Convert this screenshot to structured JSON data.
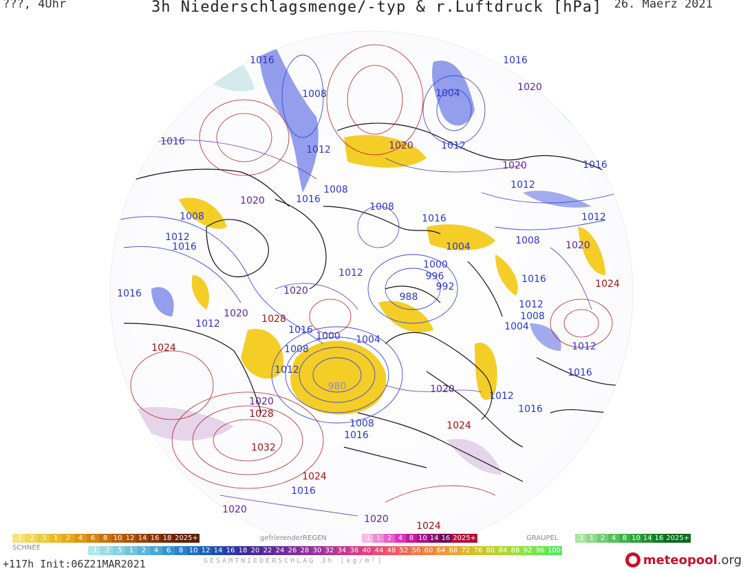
{
  "header": {
    "left": "???, 4Uhr",
    "title": "3h Niederschlagsmenge/-typ & r.Luftdruck [hPa]",
    "date": "26. Maerz 2021"
  },
  "pressure_labels": [
    {
      "t": "1016",
      "c": "lo"
    },
    {
      "t": "1008",
      "c": "lo"
    },
    {
      "t": "1012",
      "c": "lo"
    },
    {
      "t": "1020",
      "c": "mid"
    },
    {
      "t": "1004",
      "c": "lo"
    },
    {
      "t": "1016",
      "c": "lo"
    },
    {
      "t": "1020",
      "c": "mid"
    },
    {
      "t": "1012",
      "c": "lo"
    },
    {
      "t": "1016",
      "c": "lo"
    },
    {
      "t": "1020",
      "c": "mid"
    },
    {
      "t": "1012",
      "c": "lo"
    },
    {
      "t": "1008",
      "c": "lo"
    },
    {
      "t": "1016",
      "c": "lo"
    },
    {
      "t": "1020",
      "c": "mid"
    },
    {
      "t": "1016",
      "c": "lo"
    },
    {
      "t": "1012",
      "c": "lo"
    },
    {
      "t": "1008",
      "c": "lo"
    },
    {
      "t": "1012",
      "c": "lo"
    },
    {
      "t": "1016",
      "c": "lo"
    },
    {
      "t": "1016",
      "c": "lo"
    },
    {
      "t": "1008",
      "c": "lo"
    },
    {
      "t": "1004",
      "c": "lo"
    },
    {
      "t": "1008",
      "c": "lo"
    },
    {
      "t": "1020",
      "c": "mid"
    },
    {
      "t": "1000",
      "c": "lo"
    },
    {
      "t": "996",
      "c": "lo"
    },
    {
      "t": "992",
      "c": "lo"
    },
    {
      "t": "1012",
      "c": "lo"
    },
    {
      "t": "1016",
      "c": "lo"
    },
    {
      "t": "1024",
      "c": "hi"
    },
    {
      "t": "1016",
      "c": "lo"
    },
    {
      "t": "1020",
      "c": "mid"
    },
    {
      "t": "988",
      "c": "lo"
    },
    {
      "t": "1012",
      "c": "lo"
    },
    {
      "t": "1008",
      "c": "lo"
    },
    {
      "t": "1020",
      "c": "mid"
    },
    {
      "t": "1028",
      "c": "hi"
    },
    {
      "t": "1012",
      "c": "lo"
    },
    {
      "t": "1016",
      "c": "lo"
    },
    {
      "t": "1000",
      "c": "lo"
    },
    {
      "t": "1004",
      "c": "lo"
    },
    {
      "t": "1004",
      "c": "lo"
    },
    {
      "t": "1012",
      "c": "lo"
    },
    {
      "t": "1024",
      "c": "hi"
    },
    {
      "t": "1008",
      "c": "lo"
    },
    {
      "t": "1012",
      "c": "lo"
    },
    {
      "t": "1016",
      "c": "lo"
    },
    {
      "t": "980",
      "c": "lo"
    },
    {
      "t": "1020",
      "c": "mid"
    },
    {
      "t": "1012",
      "c": "lo"
    },
    {
      "t": "1016",
      "c": "lo"
    },
    {
      "t": "1020",
      "c": "mid"
    },
    {
      "t": "1028",
      "c": "hi"
    },
    {
      "t": "1008",
      "c": "lo"
    },
    {
      "t": "1016",
      "c": "lo"
    },
    {
      "t": "1024",
      "c": "hi"
    },
    {
      "t": "1032",
      "c": "hi"
    },
    {
      "t": "1024",
      "c": "hi"
    },
    {
      "t": "1016",
      "c": "lo"
    },
    {
      "t": "1020",
      "c": "mid"
    },
    {
      "t": "1020",
      "c": "mid"
    },
    {
      "t": "1024",
      "c": "hi"
    }
  ],
  "legend": {
    "snow_title": "SCHNEE",
    "snow_scale": [
      ".1",
      ".2",
      ".5",
      "1",
      "2",
      "4",
      "6",
      "8",
      "10",
      "12",
      "14",
      "16",
      "18",
      "2025+"
    ],
    "freezing_title": "gefrierenderREGEN",
    "freezing_scale": [
      ".1",
      "1",
      "2",
      "4",
      "8",
      "10",
      "14",
      "16",
      "2025+"
    ],
    "graupel_title": "GRAUPEL",
    "graupel_scale": [
      ".1",
      "1",
      "2",
      "4",
      "8",
      "10",
      "14",
      "16",
      "2025+"
    ],
    "total_scale": [
      ".1",
      ".2",
      ".5",
      "1",
      "2",
      "4",
      "6",
      "8",
      "10",
      "12",
      "14",
      "16",
      "18",
      "20",
      "22",
      "24",
      "26",
      "28",
      "30",
      "32",
      "34",
      "36",
      "40",
      "44",
      "48",
      "52",
      "56",
      "60",
      "64",
      "68",
      "72",
      "76",
      "80",
      "84",
      "88",
      "92",
      "96",
      "100"
    ],
    "total_title": "GESAMTNIEDERSCHLAG 3h [kg/m²]"
  },
  "footer": {
    "run": "+117h Init:06Z21MAR2021",
    "brand_main": "meteopool",
    "brand_tld": ".org"
  },
  "colors": {
    "low": "#2a35c8",
    "mid": "#5a1f9a",
    "high": "#a01010",
    "rain": "#f2c400",
    "snow": "#4a5ce0",
    "brand": "#c8102e"
  }
}
